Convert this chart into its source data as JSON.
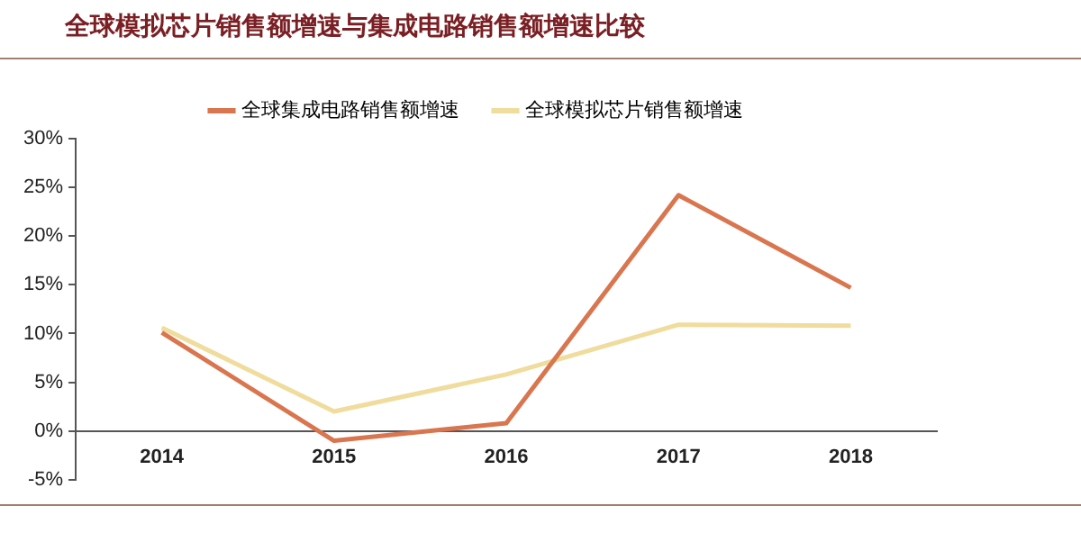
{
  "chart_data": {
    "type": "line",
    "title": "全球模拟芯片销售额增速与集成电路销售额增速比较",
    "categories": [
      "2014",
      "2015",
      "2016",
      "2017",
      "2018"
    ],
    "series": [
      {
        "name": "全球集成电路销售额增速",
        "color": "#d9764f",
        "values": [
          10.1,
          -1,
          0.8,
          24.2,
          14.7
        ]
      },
      {
        "name": "全球模拟芯片销售额增速",
        "color": "#f0dc9c",
        "values": [
          10.6,
          2.0,
          5.8,
          10.9,
          10.8
        ]
      }
    ],
    "ylim": [
      -5,
      30
    ],
    "yticks": [
      {
        "value": -5,
        "label": "-5%"
      },
      {
        "value": 0,
        "label": "0%"
      },
      {
        "value": 5,
        "label": "5%"
      },
      {
        "value": 10,
        "label": "10%"
      },
      {
        "value": 15,
        "label": "15%"
      },
      {
        "value": 20,
        "label": "20%"
      },
      {
        "value": 25,
        "label": "25%"
      },
      {
        "value": 30,
        "label": "30%"
      }
    ],
    "grid": false,
    "legend": "top",
    "marker": "none",
    "line_style": "solid"
  }
}
